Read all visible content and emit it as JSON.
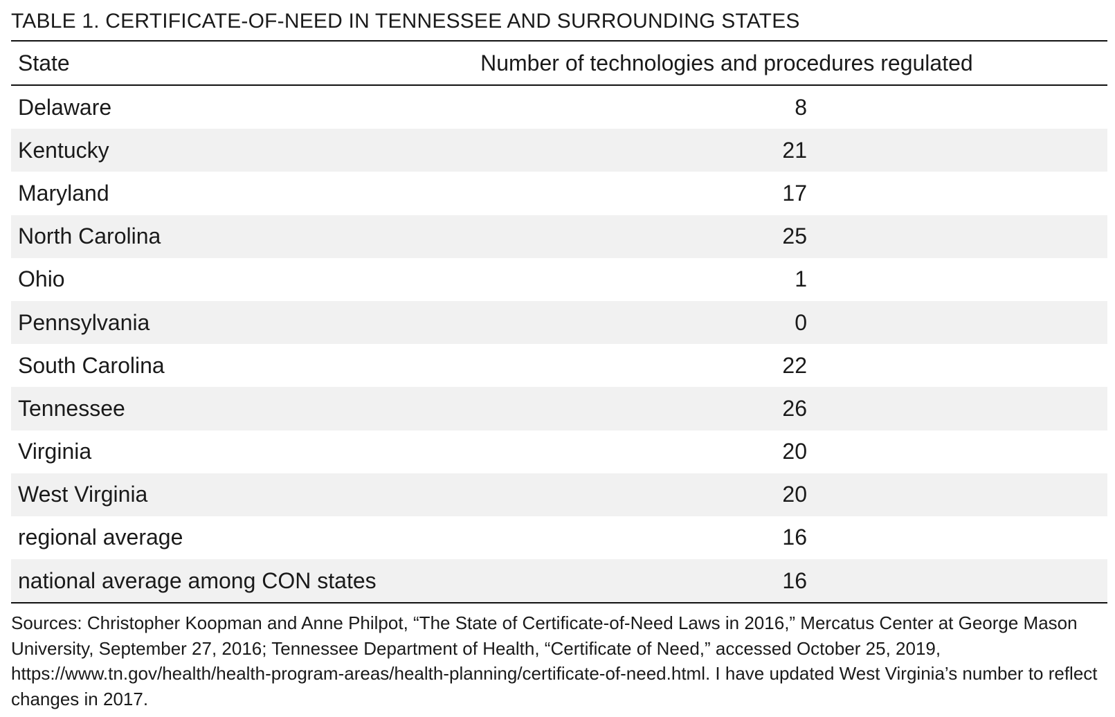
{
  "table": {
    "title": "TABLE 1. CERTIFICATE-OF-NEED IN TENNESSEE AND SURROUNDING STATES",
    "headers": [
      "State",
      "Number of technologies and procedures regulated"
    ],
    "rows": [
      [
        "Delaware",
        "8"
      ],
      [
        "Kentucky",
        "21"
      ],
      [
        "Maryland",
        "17"
      ],
      [
        "North Carolina",
        "25"
      ],
      [
        "Ohio",
        "1"
      ],
      [
        "Pennsylvania",
        "0"
      ],
      [
        "South Carolina",
        "22"
      ],
      [
        "Tennessee",
        "26"
      ],
      [
        "Virginia",
        "20"
      ],
      [
        "West Virginia",
        "20"
      ],
      [
        "regional average",
        "16"
      ],
      [
        "national average among CON states",
        "16"
      ]
    ],
    "sources": "Sources: Christopher Koopman and Anne Philpot, “The State of Certificate-of-Need Laws in 2016,” Mercatus Center at George Mason University, September 27, 2016; Tennessee Department of Health, “Certificate of Need,” accessed October 25, 2019, https://www.tn.gov/health/health-program-areas/health-planning/certificate-of-need.html. I have updated West Virginia’s number to reflect changes in 2017."
  }
}
